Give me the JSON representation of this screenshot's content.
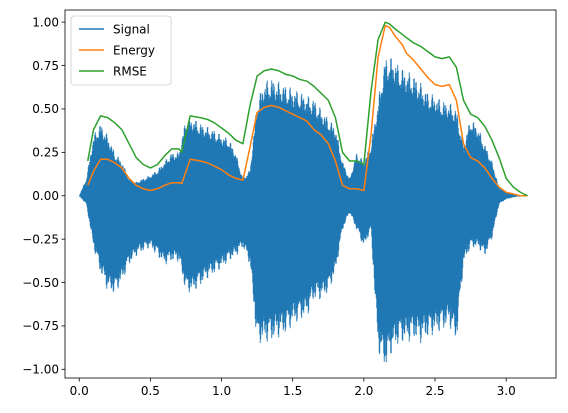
{
  "chart_data": {
    "type": "line",
    "title": "",
    "xlabel": "",
    "ylabel": "",
    "xlim": [
      -0.1,
      3.35
    ],
    "ylim": [
      -1.05,
      1.07
    ],
    "grid": false,
    "legend_position": "top-left",
    "x_ticks": [
      0.0,
      0.5,
      1.0,
      1.5,
      2.0,
      2.5,
      3.0
    ],
    "x_tick_labels": [
      "0.0",
      "0.5",
      "1.0",
      "1.5",
      "2.0",
      "2.5",
      "3.0"
    ],
    "y_ticks": [
      -1.0,
      -0.75,
      -0.5,
      -0.25,
      0.0,
      0.25,
      0.5,
      0.75,
      1.0
    ],
    "y_tick_labels": [
      "−1.00",
      "−0.75",
      "−0.50",
      "−0.25",
      "0.00",
      "0.25",
      "0.50",
      "0.75",
      "1.00"
    ],
    "series": [
      {
        "name": "Signal",
        "color": "#1f77b4",
        "kind": "waveform-envelope",
        "x": [
          0.0,
          0.05,
          0.1,
          0.15,
          0.2,
          0.25,
          0.3,
          0.35,
          0.4,
          0.45,
          0.5,
          0.55,
          0.6,
          0.65,
          0.7,
          0.72,
          0.75,
          0.8,
          0.85,
          0.9,
          0.95,
          1.0,
          1.05,
          1.1,
          1.15,
          1.2,
          1.25,
          1.3,
          1.35,
          1.4,
          1.45,
          1.5,
          1.55,
          1.6,
          1.65,
          1.7,
          1.75,
          1.8,
          1.85,
          1.9,
          1.95,
          2.0,
          2.05,
          2.1,
          2.15,
          2.2,
          2.25,
          2.3,
          2.35,
          2.4,
          2.45,
          2.5,
          2.55,
          2.6,
          2.65,
          2.7,
          2.75,
          2.8,
          2.85,
          2.9,
          2.95,
          3.0,
          3.05,
          3.1,
          3.15
        ],
        "upper": [
          0.0,
          0.1,
          0.35,
          0.42,
          0.35,
          0.25,
          0.2,
          0.1,
          0.08,
          0.1,
          0.12,
          0.15,
          0.2,
          0.25,
          0.25,
          0.33,
          0.45,
          0.45,
          0.42,
          0.4,
          0.38,
          0.35,
          0.33,
          0.25,
          0.1,
          0.15,
          0.55,
          0.66,
          0.68,
          0.66,
          0.64,
          0.62,
          0.6,
          0.58,
          0.56,
          0.5,
          0.45,
          0.4,
          0.2,
          0.1,
          0.25,
          0.2,
          0.3,
          0.55,
          0.8,
          0.8,
          0.75,
          0.72,
          0.7,
          0.65,
          0.6,
          0.58,
          0.55,
          0.54,
          0.5,
          0.3,
          0.45,
          0.4,
          0.3,
          0.2,
          0.05,
          0.02,
          0.01,
          0.0,
          0.0
        ],
        "lower": [
          0.0,
          -0.05,
          -0.3,
          -0.45,
          -0.55,
          -0.57,
          -0.5,
          -0.4,
          -0.35,
          -0.32,
          -0.3,
          -0.35,
          -0.4,
          -0.38,
          -0.38,
          -0.45,
          -0.56,
          -0.56,
          -0.52,
          -0.48,
          -0.45,
          -0.42,
          -0.38,
          -0.35,
          -0.3,
          -0.4,
          -0.86,
          -0.85,
          -0.84,
          -0.82,
          -0.8,
          -0.75,
          -0.72,
          -0.7,
          -0.6,
          -0.6,
          -0.56,
          -0.45,
          -0.2,
          -0.1,
          -0.2,
          -0.3,
          -0.2,
          -0.9,
          -1.0,
          -0.9,
          -0.85,
          -0.85,
          -0.83,
          -0.85,
          -0.82,
          -0.8,
          -0.78,
          -0.75,
          -0.85,
          -0.4,
          -0.3,
          -0.3,
          -0.35,
          -0.25,
          -0.05,
          -0.02,
          -0.01,
          0.0,
          0.0
        ]
      },
      {
        "name": "Energy",
        "color": "#ff7f0e",
        "x": [
          0.06,
          0.1,
          0.15,
          0.2,
          0.25,
          0.3,
          0.35,
          0.4,
          0.45,
          0.5,
          0.55,
          0.6,
          0.65,
          0.7,
          0.72,
          0.78,
          0.85,
          0.9,
          0.95,
          1.0,
          1.05,
          1.1,
          1.15,
          1.2,
          1.25,
          1.3,
          1.35,
          1.4,
          1.45,
          1.5,
          1.55,
          1.6,
          1.65,
          1.7,
          1.75,
          1.8,
          1.85,
          1.9,
          1.95,
          2.0,
          2.05,
          2.1,
          2.15,
          2.18,
          2.22,
          2.27,
          2.3,
          2.35,
          2.4,
          2.45,
          2.5,
          2.55,
          2.6,
          2.65,
          2.7,
          2.75,
          2.8,
          2.85,
          2.9,
          2.95,
          3.0,
          3.05,
          3.1,
          3.15
        ],
        "values": [
          0.06,
          0.14,
          0.21,
          0.21,
          0.19,
          0.16,
          0.1,
          0.06,
          0.04,
          0.03,
          0.04,
          0.06,
          0.075,
          0.075,
          0.07,
          0.21,
          0.2,
          0.19,
          0.17,
          0.15,
          0.12,
          0.1,
          0.09,
          0.28,
          0.48,
          0.51,
          0.52,
          0.51,
          0.49,
          0.47,
          0.45,
          0.43,
          0.38,
          0.35,
          0.3,
          0.2,
          0.06,
          0.04,
          0.04,
          0.03,
          0.35,
          0.8,
          0.98,
          0.97,
          0.92,
          0.87,
          0.82,
          0.78,
          0.73,
          0.68,
          0.64,
          0.63,
          0.64,
          0.55,
          0.3,
          0.22,
          0.2,
          0.16,
          0.1,
          0.05,
          0.02,
          0.01,
          0.0,
          0.0
        ]
      },
      {
        "name": "RMSE",
        "color": "#2ca02c",
        "x": [
          0.06,
          0.1,
          0.15,
          0.2,
          0.25,
          0.3,
          0.35,
          0.4,
          0.45,
          0.5,
          0.55,
          0.6,
          0.65,
          0.7,
          0.72,
          0.78,
          0.85,
          0.9,
          0.95,
          1.0,
          1.05,
          1.1,
          1.15,
          1.2,
          1.25,
          1.3,
          1.35,
          1.4,
          1.45,
          1.5,
          1.55,
          1.6,
          1.65,
          1.7,
          1.75,
          1.8,
          1.85,
          1.9,
          1.95,
          2.0,
          2.05,
          2.1,
          2.15,
          2.18,
          2.22,
          2.27,
          2.3,
          2.35,
          2.4,
          2.45,
          2.5,
          2.55,
          2.6,
          2.65,
          2.7,
          2.75,
          2.8,
          2.85,
          2.9,
          2.95,
          3.0,
          3.05,
          3.1,
          3.15
        ],
        "values": [
          0.2,
          0.38,
          0.46,
          0.45,
          0.42,
          0.38,
          0.3,
          0.22,
          0.18,
          0.16,
          0.18,
          0.23,
          0.27,
          0.27,
          0.25,
          0.46,
          0.45,
          0.44,
          0.42,
          0.39,
          0.36,
          0.32,
          0.3,
          0.52,
          0.69,
          0.72,
          0.73,
          0.72,
          0.7,
          0.69,
          0.67,
          0.66,
          0.63,
          0.59,
          0.55,
          0.45,
          0.25,
          0.2,
          0.2,
          0.18,
          0.6,
          0.9,
          1.0,
          0.99,
          0.96,
          0.93,
          0.91,
          0.88,
          0.86,
          0.83,
          0.8,
          0.79,
          0.8,
          0.74,
          0.55,
          0.47,
          0.45,
          0.4,
          0.32,
          0.22,
          0.1,
          0.05,
          0.02,
          0.0
        ]
      }
    ]
  }
}
